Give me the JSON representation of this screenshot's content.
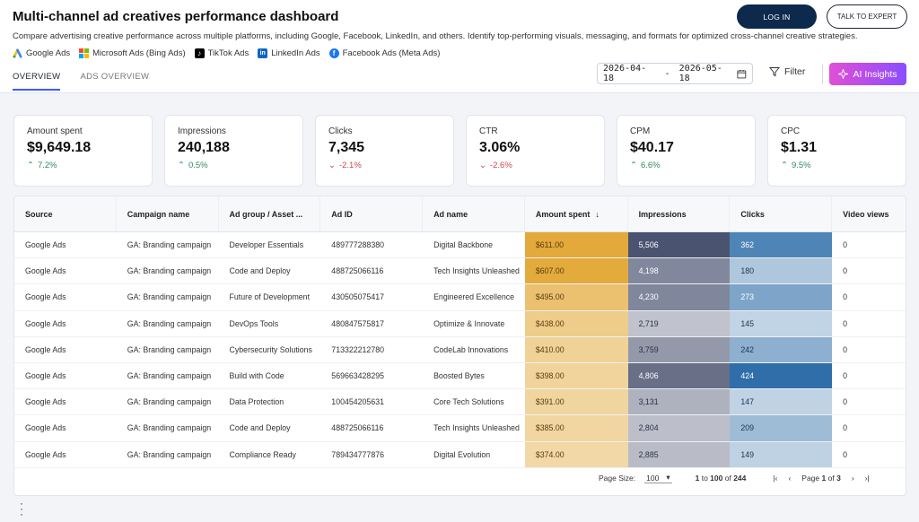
{
  "header": {
    "title": "Multi-channel ad creatives performance dashboard",
    "subtitle": "Compare advertising creative performance across multiple platforms, including Google, Facebook, LinkedIn, and others. Identify top-performing visuals, messaging, and formats for optimized cross-channel creative strategies.",
    "platforms": [
      {
        "label": "Google Ads",
        "icon": "google-ads-icon",
        "color": "#fbbc04"
      },
      {
        "label": "Microsoft Ads (Bing Ads)",
        "icon": "microsoft-icon",
        "color": "#0078d4"
      },
      {
        "label": "TikTok Ads",
        "icon": "tiktok-icon",
        "color": "#000000"
      },
      {
        "label": "LinkedIn Ads",
        "icon": "linkedin-icon",
        "color": "#0a66c2"
      },
      {
        "label": "Facebook Ads (Meta Ads)",
        "icon": "facebook-icon",
        "color": "#1877f2"
      }
    ],
    "login_label": "LOG IN",
    "expert_label": "TALK TO EXPERT"
  },
  "tabs": [
    {
      "label": "OVERVIEW",
      "active": true
    },
    {
      "label": "ADS OVERVIEW",
      "active": false
    }
  ],
  "toolbar": {
    "date_from": "2026-04-18",
    "date_sep": "-",
    "date_to": "2026-05-18",
    "filter_label": "Filter",
    "ai_label": "AI Insights"
  },
  "kpis": [
    {
      "label": "Amount spent",
      "value": "$9,649.18",
      "change": "7.2%",
      "direction": "up"
    },
    {
      "label": "Impressions",
      "value": "240,188",
      "change": "0.5%",
      "direction": "up"
    },
    {
      "label": "Clicks",
      "value": "7,345",
      "change": "-2.1%",
      "direction": "down"
    },
    {
      "label": "CTR",
      "value": "3.06%",
      "change": "-2.6%",
      "direction": "down"
    },
    {
      "label": "CPM",
      "value": "$40.17",
      "change": "6.6%",
      "direction": "up"
    },
    {
      "label": "CPC",
      "value": "$1.31",
      "change": "9.5%",
      "direction": "up"
    }
  ],
  "table": {
    "columns": [
      "Source",
      "Campaign name",
      "Ad group / Asset ...",
      "Ad ID",
      "Ad name",
      "Amount spent",
      "Impressions",
      "Clicks",
      "Video views"
    ],
    "sort_icon": "arrow-down-icon",
    "rows": [
      {
        "source": "Google Ads",
        "campaign": "GA: Branding campaign",
        "adgroup": "Developer Essentials",
        "adid": "489777288380",
        "adname": "Digital Backbone",
        "amount": "$611.00",
        "impressions": "5,506",
        "clicks": "362",
        "views": "0"
      },
      {
        "source": "Google Ads",
        "campaign": "GA: Branding campaign",
        "adgroup": "Code and Deploy",
        "adid": "488725066116",
        "adname": "Tech Insights Unleashed",
        "amount": "$607.00",
        "impressions": "4,198",
        "clicks": "180",
        "views": "0"
      },
      {
        "source": "Google Ads",
        "campaign": "GA: Branding campaign",
        "adgroup": "Future of Development",
        "adid": "430505075417",
        "adname": "Engineered Excellence",
        "amount": "$495.00",
        "impressions": "4,230",
        "clicks": "273",
        "views": "0"
      },
      {
        "source": "Google Ads",
        "campaign": "GA: Branding campaign",
        "adgroup": "DevOps Tools",
        "adid": "480847575817",
        "adname": "Optimize & Innovate",
        "amount": "$438.00",
        "impressions": "2,719",
        "clicks": "145",
        "views": "0"
      },
      {
        "source": "Google Ads",
        "campaign": "GA: Branding campaign",
        "adgroup": "Cybersecurity Solutions",
        "adid": "713322212780",
        "adname": "CodeLab Innovations",
        "amount": "$410.00",
        "impressions": "3,759",
        "clicks": "242",
        "views": "0"
      },
      {
        "source": "Google Ads",
        "campaign": "GA: Branding campaign",
        "adgroup": "Build with Code",
        "adid": "569663428295",
        "adname": "Boosted Bytes",
        "amount": "$398.00",
        "impressions": "4,806",
        "clicks": "424",
        "views": "0"
      },
      {
        "source": "Google Ads",
        "campaign": "GA: Branding campaign",
        "adgroup": "Data Protection",
        "adid": "100454205631",
        "adname": "Core Tech Solutions",
        "amount": "$391.00",
        "impressions": "3,131",
        "clicks": "147",
        "views": "0"
      },
      {
        "source": "Google Ads",
        "campaign": "GA: Branding campaign",
        "adgroup": "Code and Deploy",
        "adid": "488725066116",
        "adname": "Tech Insights Unleashed",
        "amount": "$385.00",
        "impressions": "2,804",
        "clicks": "209",
        "views": "0"
      },
      {
        "source": "Google Ads",
        "campaign": "GA: Branding campaign",
        "adgroup": "Compliance Ready",
        "adid": "789434777876",
        "adname": "Digital Evolution",
        "amount": "$374.00",
        "impressions": "2,885",
        "clicks": "149",
        "views": "0"
      }
    ]
  },
  "pager": {
    "page_size_label": "Page Size:",
    "page_size": "100",
    "range_from": "1",
    "range_to_label": "to",
    "range_to": "100",
    "of_label": "of",
    "total": "244",
    "page_label": "Page",
    "page": "1",
    "page_of_label": "of",
    "pages": "3"
  },
  "colors": {
    "amount": "#e3a93a",
    "impressions": "#4a5370",
    "clicks": "#2f6ea8",
    "accent": "#3d5afe"
  }
}
